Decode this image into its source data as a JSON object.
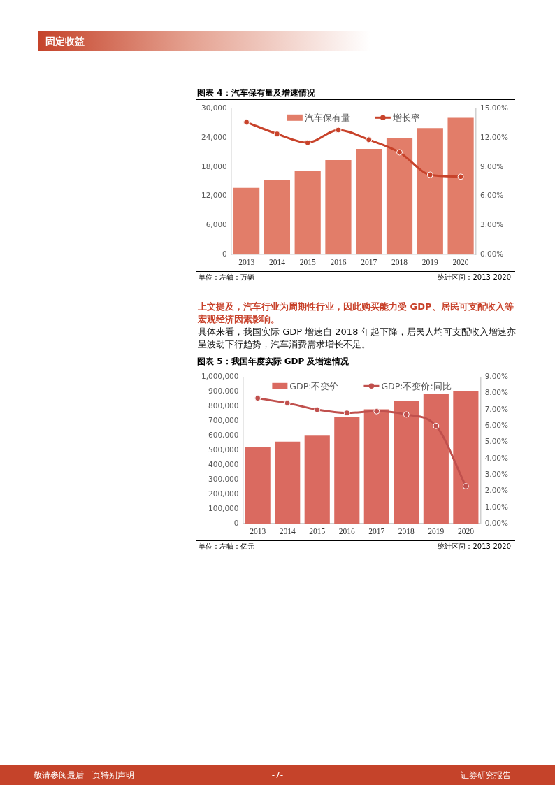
{
  "chart_data": [
    {
      "type": "other",
      "annotations": [
        "固定收益"
      ]
    },
    {
      "type": "bar",
      "title": "图表 4：汽车保有量及增速情况",
      "annotations": [
        "单位：左轴：万辆",
        "统计区间：2013-2020"
      ],
      "categories": [
        "2013",
        "2014",
        "2015",
        "2016",
        "2017",
        "2018",
        "2019",
        "2020"
      ],
      "series": [
        {
          "name": "汽车保有量",
          "color": "#e27d69",
          "values": [
            13700,
            15400,
            17200,
            19400,
            21700,
            24000,
            26000,
            28100
          ]
        },
        {
          "name": "增长率",
          "type": "line",
          "axis": "y2",
          "color": "#c8432b",
          "values": [
            13.6,
            12.4,
            11.5,
            12.8,
            11.8,
            10.5,
            8.2,
            8.0
          ]
        }
      ],
      "ylim": [
        0,
        30000
      ],
      "yticks": [
        0,
        {
          "value": 6000,
          "label": "6,000"
        },
        {
          "value": 12000,
          "label": "12,000"
        },
        {
          "value": 18000,
          "label": "18,000"
        },
        {
          "value": 24000,
          "label": "24,000"
        },
        {
          "value": 30000,
          "label": "30,000"
        }
      ],
      "y2lim": [
        0,
        15
      ],
      "y2ticks": [
        {
          "value": 0,
          "label": "0.00%"
        },
        {
          "value": 3,
          "label": "3.00%"
        },
        {
          "value": 6,
          "label": "6.00%"
        },
        {
          "value": 9,
          "label": "9.00%"
        },
        {
          "value": 12,
          "label": "12.00%"
        },
        {
          "value": 15,
          "label": "15.00%"
        }
      ],
      "grid": false,
      "legend": "top",
      "marker": "circle"
    },
    {
      "type": "other",
      "annotations": [
        "上文提及，汽车行业为周期性行业，因此购买能力受 GDP、居民可支配收入等宏观经济因素影响。",
        "具体来看，我国实际 GDP 增速自 2018 年起下降，居民人均可支配收入增速亦呈波动下行趋势，汽车消费需求增长不足。"
      ]
    },
    {
      "type": "bar",
      "title": "图表 5：我国年度实际 GDP 及增速情况",
      "annotations": [
        "单位：左轴：亿元",
        "统计区间：2013-2020"
      ],
      "categories": [
        "2013",
        "2014",
        "2015",
        "2016",
        "2017",
        "2018",
        "2019",
        "2020"
      ],
      "series": [
        {
          "name": "GDP:不变价",
          "color": "#da6a60",
          "values": [
            520000,
            560000,
            600000,
            730000,
            780000,
            835000,
            885000,
            905000
          ]
        },
        {
          "name": "GDP:不变价:同比",
          "type": "line",
          "axis": "y2",
          "color": "#c0504d",
          "values": [
            7.7,
            7.4,
            7.0,
            6.8,
            6.9,
            6.7,
            6.0,
            2.3
          ]
        }
      ],
      "ylim": [
        0,
        1000000
      ],
      "yticks": [
        0,
        {
          "value": 100000,
          "label": "100,000"
        },
        {
          "value": 200000,
          "label": "200,000"
        },
        {
          "value": 300000,
          "label": "300,000"
        },
        {
          "value": 400000,
          "label": "400,000"
        },
        {
          "value": 500000,
          "label": "500,000"
        },
        {
          "value": 600000,
          "label": "600,000"
        },
        {
          "value": 700000,
          "label": "700,000"
        },
        {
          "value": 800000,
          "label": "800,000"
        },
        {
          "value": 900000,
          "label": "900,000"
        },
        {
          "value": 1000000,
          "label": "1,000,000"
        }
      ],
      "y2lim": [
        0,
        9
      ],
      "y2ticks": [
        {
          "value": 0,
          "label": "0.00%"
        },
        {
          "value": 1,
          "label": "1.00%"
        },
        {
          "value": 2,
          "label": "2.00%"
        },
        {
          "value": 3,
          "label": "3.00%"
        },
        {
          "value": 4,
          "label": "4.00%"
        },
        {
          "value": 5,
          "label": "5.00%"
        },
        {
          "value": 6,
          "label": "6.00%"
        },
        {
          "value": 7,
          "label": "7.00%"
        },
        {
          "value": 8,
          "label": "8.00%"
        },
        {
          "value": 9,
          "label": "9.00%"
        }
      ],
      "grid": false,
      "legend": "top",
      "marker": "circle"
    },
    {
      "type": "other",
      "annotations": [
        "敬请参阅最后一页特别声明",
        "-7-",
        "证券研究报告"
      ]
    }
  ]
}
